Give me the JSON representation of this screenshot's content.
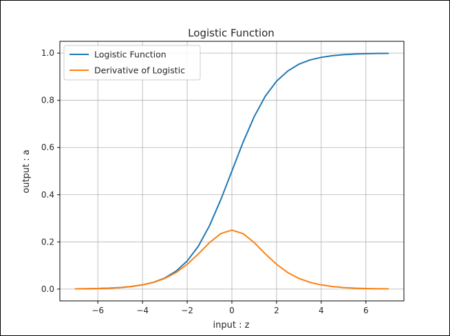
{
  "chart_data": {
    "type": "line",
    "title": "Logistic Function",
    "xlabel": "input : z",
    "ylabel": "output : a",
    "xlim": [
      -7.7,
      7.7
    ],
    "ylim": [
      -0.05,
      1.05
    ],
    "xticks": [
      -6,
      -4,
      -2,
      0,
      2,
      4,
      6
    ],
    "xtick_labels": [
      "−6",
      "−4",
      "−2",
      "0",
      "2",
      "4",
      "6"
    ],
    "yticks": [
      0.0,
      0.2,
      0.4,
      0.6,
      0.8,
      1.0
    ],
    "ytick_labels": [
      "0.0",
      "0.2",
      "0.4",
      "0.6",
      "0.8",
      "1.0"
    ],
    "grid": true,
    "legend_position": "top-left",
    "x": [
      -7,
      -6.5,
      -6,
      -5.5,
      -5,
      -4.5,
      -4,
      -3.5,
      -3,
      -2.5,
      -2,
      -1.5,
      -1,
      -0.5,
      0,
      0.5,
      1,
      1.5,
      2,
      2.5,
      3,
      3.5,
      4,
      4.5,
      5,
      5.5,
      6,
      6.5,
      7
    ],
    "series": [
      {
        "name": "Logistic Function",
        "color": "#1f77b4",
        "values": [
          0.001,
          0.0015,
          0.0025,
          0.004,
          0.0067,
          0.011,
          0.018,
          0.029,
          0.047,
          0.076,
          0.119,
          0.182,
          0.269,
          0.378,
          0.5,
          0.622,
          0.731,
          0.818,
          0.881,
          0.924,
          0.953,
          0.971,
          0.982,
          0.989,
          0.9933,
          0.996,
          0.9975,
          0.9985,
          0.999
        ]
      },
      {
        "name": "Derivative of Logistic",
        "color": "#ff7f0e",
        "values": [
          0.0009,
          0.0015,
          0.0025,
          0.004,
          0.0066,
          0.0109,
          0.0177,
          0.0285,
          0.0452,
          0.0701,
          0.105,
          0.149,
          0.197,
          0.235,
          0.25,
          0.235,
          0.197,
          0.149,
          0.105,
          0.0701,
          0.0452,
          0.0285,
          0.0177,
          0.0109,
          0.0066,
          0.004,
          0.0025,
          0.0015,
          0.0009
        ]
      }
    ]
  }
}
